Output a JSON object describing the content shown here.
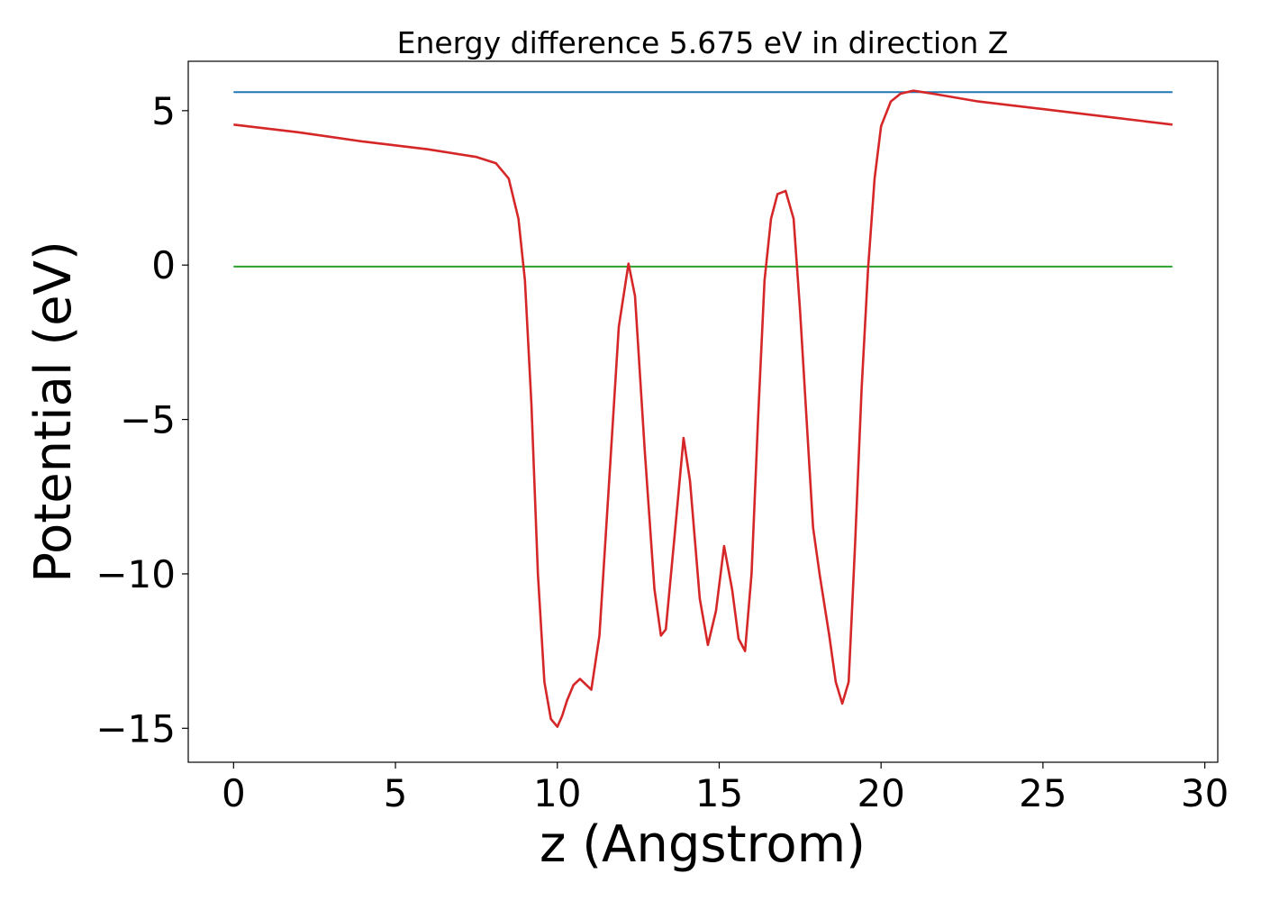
{
  "chart_data": {
    "type": "line",
    "title": "Energy difference 5.675 eV in direction Z",
    "xlabel": "z (Angstrom)",
    "ylabel": "Potential (eV)",
    "xlim": [
      -1.4,
      30.4
    ],
    "ylim": [
      -16.1,
      6.6
    ],
    "xticks": [
      0,
      5,
      10,
      15,
      20,
      25,
      30
    ],
    "xtick_labels": [
      "0",
      "5",
      "10",
      "15",
      "20",
      "25",
      "30"
    ],
    "yticks": [
      5,
      0,
      -5,
      -10,
      -15
    ],
    "ytick_labels": [
      "5",
      "0",
      "−5",
      "−10",
      "−15"
    ],
    "grid": false,
    "series": [
      {
        "color": "#1f77b4",
        "x": [
          0,
          29
        ],
        "y": [
          5.6,
          5.6
        ]
      },
      {
        "color": "#2ca02c",
        "x": [
          0,
          29
        ],
        "y": [
          -0.05,
          -0.05
        ]
      },
      {
        "color": "#d62728",
        "x": [
          0,
          2,
          4,
          6,
          7.5,
          8.1,
          8.5,
          8.8,
          9.0,
          9.2,
          9.4,
          9.6,
          9.8,
          10.0,
          10.15,
          10.3,
          10.5,
          10.7,
          10.9,
          11.05,
          11.3,
          11.6,
          11.9,
          12.2,
          12.4,
          12.7,
          13.0,
          13.2,
          13.35,
          13.6,
          13.9,
          14.1,
          14.4,
          14.65,
          14.9,
          15.15,
          15.4,
          15.6,
          15.8,
          16.0,
          16.2,
          16.4,
          16.6,
          16.8,
          17.05,
          17.3,
          17.5,
          17.7,
          17.9,
          18.1,
          18.4,
          18.6,
          18.8,
          19.0,
          19.2,
          19.4,
          19.6,
          19.8,
          20.0,
          20.3,
          20.6,
          21.0,
          21.3,
          21.6,
          23,
          25,
          27,
          29
        ],
        "y": [
          4.55,
          4.3,
          4.0,
          3.75,
          3.5,
          3.3,
          2.8,
          1.5,
          -0.5,
          -4.5,
          -10.0,
          -13.5,
          -14.7,
          -14.95,
          -14.6,
          -14.1,
          -13.6,
          -13.4,
          -13.6,
          -13.75,
          -12.0,
          -7.0,
          -2.0,
          0.05,
          -1.0,
          -6.0,
          -10.5,
          -12.0,
          -11.8,
          -9.0,
          -5.6,
          -7.0,
          -10.8,
          -12.3,
          -11.2,
          -9.1,
          -10.5,
          -12.1,
          -12.5,
          -10.0,
          -5.0,
          -0.5,
          1.5,
          2.3,
          2.4,
          1.5,
          -1.5,
          -5.0,
          -8.5,
          -10.0,
          -12.0,
          -13.5,
          -14.2,
          -13.5,
          -9.0,
          -4.0,
          -0.1,
          2.8,
          4.5,
          5.3,
          5.55,
          5.65,
          5.6,
          5.55,
          5.3,
          5.05,
          4.8,
          4.55
        ]
      }
    ]
  }
}
